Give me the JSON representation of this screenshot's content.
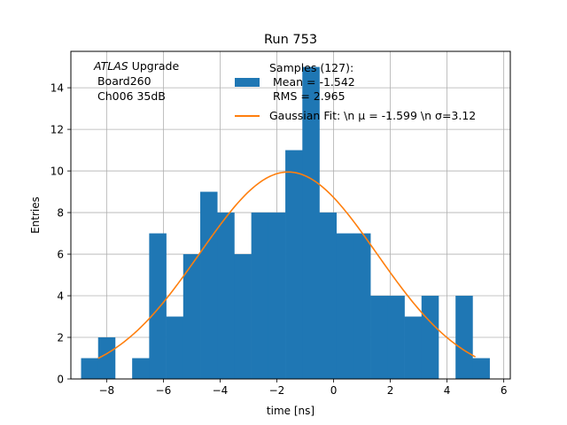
{
  "chart_data": {
    "type": "bar",
    "title": "Run 753",
    "xlabel": "time [ns]",
    "ylabel": "Entries",
    "xlim": [
      -9.26,
      6.23
    ],
    "ylim": [
      0,
      15.75
    ],
    "grid": true,
    "xticks": [
      -8,
      -6,
      -4,
      -2,
      0,
      2,
      4,
      6
    ],
    "xtick_labels": [
      "−8",
      "−6",
      "−4",
      "−2",
      "0",
      "2",
      "4",
      "6"
    ],
    "yticks": [
      0,
      2,
      4,
      6,
      8,
      10,
      12,
      14
    ],
    "ytick_labels": [
      "0",
      "2",
      "4",
      "6",
      "8",
      "10",
      "12",
      "14"
    ],
    "histogram": {
      "name": "Samples",
      "color": "#1f77b4",
      "bin_start": -8.9,
      "bin_width": 0.6,
      "counts": [
        1,
        2,
        0,
        1,
        7,
        3,
        6,
        9,
        8,
        6,
        8,
        8,
        11,
        15,
        8,
        7,
        7,
        4,
        4,
        3,
        4,
        0,
        4,
        1
      ]
    },
    "gaussian": {
      "name": "Gaussian Fit",
      "color": "#ff7f0e",
      "mu": -1.599,
      "sigma": 3.12,
      "amplitude": 9.95,
      "x_range": [
        -8.3,
        5.0
      ]
    },
    "annotation": {
      "prefix": "ATLAS",
      "line1_rest": " Upgrade",
      "line2": " Board260",
      "line3": " Ch006 35dB"
    },
    "legend": {
      "hist_line1": "Samples (127):",
      "hist_line2": " Mean = -1.542",
      "hist_line3": " RMS = 2.965",
      "fit_label": "Gaussian Fit: \\n μ = -1.599 \\n σ=3.12"
    }
  }
}
